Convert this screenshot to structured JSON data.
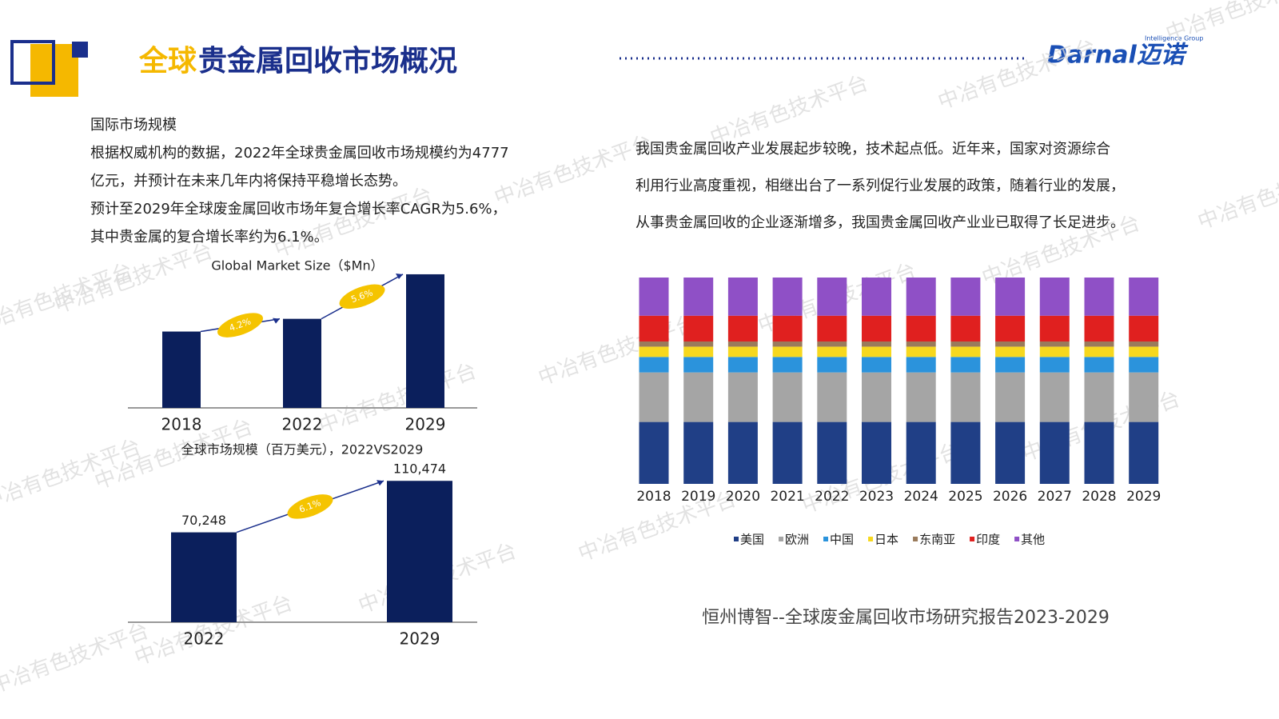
{
  "header": {
    "title_highlight": "全球",
    "title_rest": "贵金属回收市场概况",
    "logo": "Darnal迈诺",
    "logo_sub": "Intelligence Group"
  },
  "left_text": {
    "heading": "国际市场规模",
    "lines": [
      "根据权威机构的数据，2022年全球贵金属回收市场规模约为4777",
      "亿元，并预计在未来几年内将保持平稳增长态势。",
      "预计至2029年全球废金属回收市场年复合增长率CAGR为5.6%，",
      "其中贵金属的复合增长率约为6.1%。"
    ]
  },
  "right_text": {
    "lines": [
      "我国贵金属回收产业发展起步较晚，技术起点低。近年来，国家对资源综合",
      "利用行业高度重视，相继出台了一系列促行业发展的政策，随着行业的发展，",
      "从事贵金属回收的企业逐渐增多，我国贵金属回收产业业已取得了长足进步。"
    ]
  },
  "source": "恒州博智--全球废金属回收市场研究报告2023-2029",
  "watermark": "中冶有色技术平台",
  "chart_data": [
    {
      "type": "bar",
      "title": "Global Market Size（$Mn）",
      "categories": [
        "2018",
        "2022",
        "2029"
      ],
      "values": [
        60000,
        70000,
        105000
      ],
      "color": "#0b1f5c",
      "ylim": [
        0,
        110000
      ],
      "annotations": [
        "4.2%",
        "5.6%"
      ]
    },
    {
      "type": "bar",
      "title": "全球市场规模（百万美元），2022VS2029",
      "categories": [
        "2022",
        "2029"
      ],
      "values": [
        70248,
        110474
      ],
      "value_labels": [
        "70,248",
        "110,474"
      ],
      "color": "#0b1f5c",
      "ylim": [
        0,
        120000
      ],
      "annotations": [
        "6.1%"
      ]
    },
    {
      "type": "stacked_bar",
      "categories": [
        "2018",
        "2019",
        "2020",
        "2021",
        "2022",
        "2023",
        "2024",
        "2025",
        "2026",
        "2027",
        "2028",
        "2029"
      ],
      "ylim": [
        0,
        100
      ],
      "legend": "bottom",
      "series": [
        {
          "name": "美国",
          "color": "#203f86",
          "values": [
            30,
            30,
            30,
            30,
            30,
            30,
            30,
            30,
            30,
            30,
            30,
            30
          ]
        },
        {
          "name": "欧洲",
          "color": "#a5a5a5",
          "values": [
            24,
            24,
            24,
            24,
            24,
            24,
            24,
            24,
            24,
            24,
            24,
            24
          ]
        },
        {
          "name": "中国",
          "color": "#2b93dc",
          "values": [
            7.5,
            7.5,
            7.5,
            7.5,
            7.5,
            7.5,
            7.5,
            7.5,
            7.5,
            7.5,
            7.5,
            7.5
          ]
        },
        {
          "name": "日本",
          "color": "#f7d81e",
          "values": [
            5,
            5,
            5,
            5,
            5,
            5,
            5,
            5,
            5,
            5,
            5,
            5
          ]
        },
        {
          "name": "东南亚",
          "color": "#9a7b5c",
          "values": [
            2.5,
            2.5,
            2.5,
            2.5,
            2.5,
            2.5,
            2.5,
            2.5,
            2.5,
            2.5,
            2.5,
            2.5
          ]
        },
        {
          "name": "印度",
          "color": "#e0201f",
          "values": [
            12.5,
            12.5,
            12.5,
            12.5,
            12.5,
            12.5,
            12.5,
            12.5,
            12.5,
            12.5,
            12.5,
            12.5
          ]
        },
        {
          "name": "其他",
          "color": "#8f50c6",
          "values": [
            18.5,
            18.5,
            18.5,
            18.5,
            18.5,
            18.5,
            18.5,
            18.5,
            18.5,
            18.5,
            18.5,
            18.5
          ]
        }
      ]
    }
  ]
}
